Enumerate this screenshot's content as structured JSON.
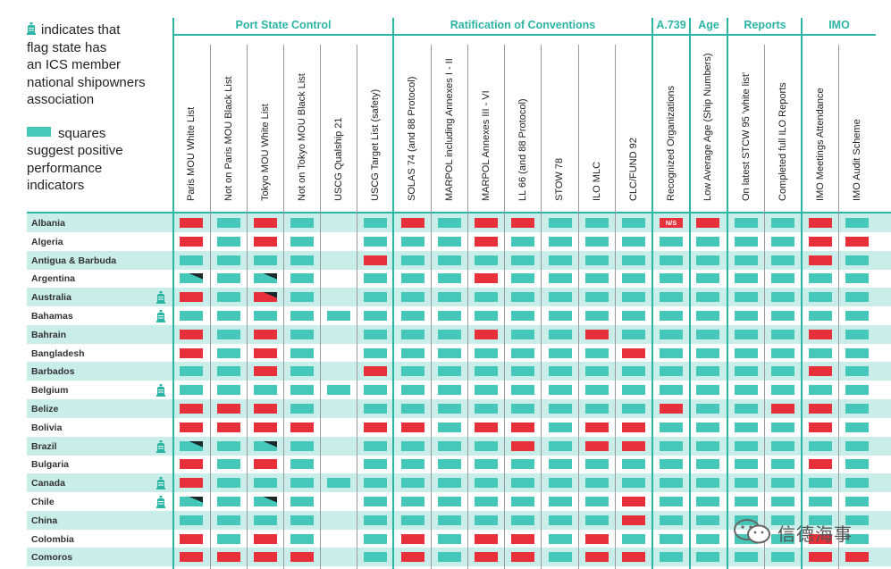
{
  "legend": {
    "lines1": [
      "indicates that",
      "flag state has",
      "an ICS member",
      "national shipowners",
      "association"
    ],
    "lines2": [
      "squares",
      "suggest positive",
      "performance",
      "indicators"
    ]
  },
  "groups": [
    "Port State Control",
    "Ratification of Conventions",
    "A.739",
    "Age",
    "Reports",
    "IMO"
  ],
  "columns": [
    "Paris MOU White List",
    "Not on Paris MOU Black List",
    "Tokyo MOU White List",
    "Not on Tokyo MOU Black List",
    "USCG Qualship 21",
    "USCG Target List (safety)",
    "SOLAS 74 (and 88 Protocol)",
    "MARPOL including Annexes I - II",
    "MARPOL Annexes III - VI",
    "LL 66 (and 88 Protocol)",
    "STOW 78",
    "ILO MLC",
    "CLC/FUND 92",
    "Recognized Organizations",
    "Low Average Age (Ship Numbers)",
    "On latest STCW 95 'white list'",
    "Completed full ILO Reports",
    "IMO Meetings Attendance",
    "IMO Audit Scheme"
  ],
  "cell_legend": {
    "g": "green",
    "r": "red",
    "gt": "green with black corner",
    "rt": "red with black corner",
    "ns": "N/S",
    "": "blank"
  },
  "na_label": "N/S",
  "rows": [
    {
      "name": "Albania",
      "ics": false,
      "cells": [
        "r",
        "g",
        "r",
        "g",
        "",
        "g",
        "r",
        "g",
        "r",
        "r",
        "g",
        "g",
        "g",
        "ns",
        "r",
        "g",
        "g",
        "r",
        "g"
      ]
    },
    {
      "name": "Algeria",
      "ics": false,
      "cells": [
        "r",
        "g",
        "r",
        "g",
        "",
        "g",
        "g",
        "g",
        "r",
        "g",
        "g",
        "g",
        "g",
        "g",
        "g",
        "g",
        "g",
        "r",
        "r"
      ]
    },
    {
      "name": "Antigua & Barbuda",
      "ics": false,
      "cells": [
        "g",
        "g",
        "g",
        "g",
        "",
        "r",
        "g",
        "g",
        "g",
        "g",
        "g",
        "g",
        "g",
        "g",
        "g",
        "g",
        "g",
        "r",
        "g"
      ]
    },
    {
      "name": "Argentina",
      "ics": false,
      "cells": [
        "gt",
        "g",
        "gt",
        "g",
        "",
        "g",
        "g",
        "g",
        "r",
        "g",
        "g",
        "g",
        "g",
        "g",
        "g",
        "g",
        "g",
        "g",
        "g"
      ]
    },
    {
      "name": "Australia",
      "ics": true,
      "cells": [
        "r",
        "g",
        "rt",
        "g",
        "",
        "g",
        "g",
        "g",
        "g",
        "g",
        "g",
        "g",
        "g",
        "g",
        "g",
        "g",
        "g",
        "g",
        "g"
      ]
    },
    {
      "name": "Bahamas",
      "ics": true,
      "cells": [
        "g",
        "g",
        "g",
        "g",
        "g",
        "g",
        "g",
        "g",
        "g",
        "g",
        "g",
        "g",
        "g",
        "g",
        "g",
        "g",
        "g",
        "g",
        "g"
      ]
    },
    {
      "name": "Bahrain",
      "ics": false,
      "cells": [
        "r",
        "g",
        "r",
        "g",
        "",
        "g",
        "g",
        "g",
        "r",
        "g",
        "g",
        "r",
        "g",
        "g",
        "g",
        "g",
        "g",
        "r",
        "g"
      ]
    },
    {
      "name": "Bangladesh",
      "ics": false,
      "cells": [
        "r",
        "g",
        "r",
        "g",
        "",
        "g",
        "g",
        "g",
        "g",
        "g",
        "g",
        "g",
        "r",
        "g",
        "g",
        "g",
        "g",
        "g",
        "g"
      ]
    },
    {
      "name": "Barbados",
      "ics": false,
      "cells": [
        "g",
        "g",
        "r",
        "g",
        "",
        "r",
        "g",
        "g",
        "g",
        "g",
        "g",
        "g",
        "g",
        "g",
        "g",
        "g",
        "g",
        "r",
        "g"
      ]
    },
    {
      "name": "Belgium",
      "ics": true,
      "cells": [
        "g",
        "g",
        "g",
        "g",
        "g",
        "g",
        "g",
        "g",
        "g",
        "g",
        "g",
        "g",
        "g",
        "g",
        "g",
        "g",
        "g",
        "g",
        "g"
      ]
    },
    {
      "name": "Belize",
      "ics": false,
      "cells": [
        "r",
        "r",
        "r",
        "g",
        "",
        "g",
        "g",
        "g",
        "g",
        "g",
        "g",
        "g",
        "g",
        "r",
        "g",
        "g",
        "r",
        "r",
        "g"
      ]
    },
    {
      "name": "Bolivia",
      "ics": false,
      "cells": [
        "r",
        "r",
        "r",
        "r",
        "",
        "r",
        "r",
        "g",
        "r",
        "r",
        "g",
        "r",
        "r",
        "g",
        "g",
        "g",
        "g",
        "r",
        "g"
      ]
    },
    {
      "name": "Brazil",
      "ics": true,
      "cells": [
        "gt",
        "g",
        "gt",
        "g",
        "",
        "g",
        "g",
        "g",
        "g",
        "r",
        "g",
        "r",
        "r",
        "g",
        "g",
        "g",
        "g",
        "g",
        "g"
      ]
    },
    {
      "name": "Bulgaria",
      "ics": false,
      "cells": [
        "r",
        "g",
        "r",
        "g",
        "",
        "g",
        "g",
        "g",
        "g",
        "g",
        "g",
        "g",
        "g",
        "g",
        "g",
        "g",
        "g",
        "r",
        "g"
      ]
    },
    {
      "name": "Canada",
      "ics": true,
      "cells": [
        "r",
        "g",
        "g",
        "g",
        "g",
        "g",
        "g",
        "g",
        "g",
        "g",
        "g",
        "g",
        "g",
        "g",
        "g",
        "g",
        "g",
        "g",
        "g"
      ]
    },
    {
      "name": "Chile",
      "ics": true,
      "cells": [
        "gt",
        "g",
        "gt",
        "g",
        "",
        "g",
        "g",
        "g",
        "g",
        "g",
        "g",
        "g",
        "r",
        "g",
        "g",
        "g",
        "g",
        "g",
        "g"
      ]
    },
    {
      "name": "China",
      "ics": false,
      "cells": [
        "g",
        "g",
        "g",
        "g",
        "",
        "g",
        "g",
        "g",
        "g",
        "g",
        "g",
        "g",
        "r",
        "g",
        "g",
        "g",
        "g",
        "g",
        "g"
      ]
    },
    {
      "name": "Colombia",
      "ics": false,
      "cells": [
        "r",
        "g",
        "r",
        "g",
        "",
        "g",
        "r",
        "g",
        "r",
        "r",
        "g",
        "r",
        "g",
        "g",
        "g",
        "g",
        "g",
        "r",
        "g"
      ]
    },
    {
      "name": "Comoros",
      "ics": false,
      "cells": [
        "r",
        "r",
        "r",
        "r",
        "",
        "g",
        "r",
        "g",
        "r",
        "r",
        "g",
        "r",
        "r",
        "g",
        "g",
        "g",
        "g",
        "r",
        "r"
      ]
    }
  ],
  "watermark": "信德海事"
}
